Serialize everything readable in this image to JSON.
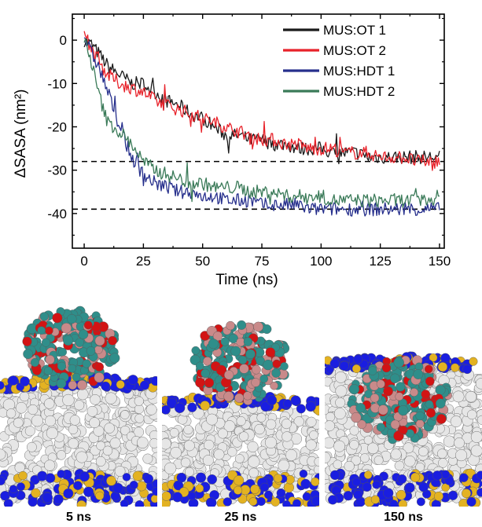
{
  "chart_data": {
    "type": "line",
    "xlabel": "Time (ns)",
    "ylabel": "ΔSASA (nm²)",
    "xlim": [
      -5,
      152
    ],
    "ylim": [
      -48,
      6
    ],
    "xticks": [
      0,
      25,
      50,
      75,
      100,
      125,
      150
    ],
    "yticks": [
      0,
      -10,
      -20,
      -30,
      -40
    ],
    "reference_lines": [
      -28,
      -39
    ],
    "legend_position": "top-right",
    "series": [
      {
        "name": "MUS:OT 1",
        "color": "#1a1a1a",
        "x": [
          0,
          3,
          6,
          10,
          15,
          20,
          25,
          30,
          35,
          40,
          45,
          50,
          55,
          60,
          65,
          70,
          75,
          80,
          85,
          90,
          95,
          100,
          105,
          110,
          115,
          120,
          125,
          130,
          135,
          140,
          145,
          150
        ],
        "y": [
          0,
          -1,
          -3,
          -6,
          -8,
          -10,
          -10,
          -12,
          -14,
          -15,
          -17,
          -18,
          -20,
          -22,
          -22,
          -23,
          -23,
          -24,
          -24,
          -25,
          -25,
          -25,
          -26,
          -26,
          -26,
          -27,
          -27,
          -27,
          -27,
          -27,
          -27,
          -27
        ]
      },
      {
        "name": "MUS:OT 2",
        "color": "#e8222a",
        "x": [
          0,
          3,
          6,
          10,
          15,
          20,
          25,
          30,
          35,
          40,
          45,
          50,
          55,
          60,
          65,
          70,
          75,
          80,
          85,
          90,
          95,
          100,
          105,
          110,
          115,
          120,
          125,
          130,
          135,
          140,
          145,
          150
        ],
        "y": [
          1,
          -2,
          -5,
          -8,
          -10,
          -11,
          -12,
          -14,
          -15,
          -16,
          -17,
          -18,
          -19,
          -20,
          -21,
          -22,
          -23,
          -23,
          -24,
          -24,
          -25,
          -25,
          -25,
          -26,
          -26,
          -26,
          -27,
          -27,
          -27,
          -28,
          -28,
          -28
        ]
      },
      {
        "name": "MUS:HDT 1",
        "color": "#262f8c",
        "x": [
          0,
          3,
          6,
          10,
          15,
          20,
          25,
          30,
          35,
          40,
          45,
          50,
          55,
          60,
          65,
          70,
          75,
          80,
          85,
          90,
          95,
          100,
          105,
          110,
          115,
          120,
          125,
          130,
          135,
          140,
          145,
          150
        ],
        "y": [
          1,
          -3,
          -6,
          -12,
          -20,
          -27,
          -31,
          -33,
          -34,
          -35,
          -35,
          -36,
          -36,
          -37,
          -37,
          -37,
          -38,
          -38,
          -38,
          -38,
          -39,
          -39,
          -39,
          -39,
          -39,
          -39,
          -39,
          -39,
          -39,
          -39,
          -39,
          -39
        ]
      },
      {
        "name": "MUS:HDT 2",
        "color": "#3a7a58",
        "x": [
          0,
          3,
          6,
          8,
          10,
          15,
          20,
          25,
          30,
          35,
          40,
          45,
          50,
          55,
          60,
          65,
          70,
          75,
          80,
          85,
          90,
          95,
          100,
          105,
          110,
          115,
          120,
          125,
          130,
          135,
          140,
          145,
          150
        ],
        "y": [
          1,
          -5,
          -12,
          -16,
          -19,
          -21,
          -24,
          -28,
          -30,
          -31,
          -32,
          -33,
          -33,
          -34,
          -34,
          -34,
          -35,
          -35,
          -35,
          -36,
          -36,
          -36,
          -36,
          -37,
          -37,
          -37,
          -37,
          -37,
          -37,
          -37,
          -37,
          -37,
          -36
        ]
      }
    ]
  },
  "panels": [
    {
      "caption": "5 ns"
    },
    {
      "caption": "25 ns"
    },
    {
      "caption": "150 ns"
    }
  ],
  "panel_colors": {
    "lipid_tails": "#e6e6e6",
    "headgroup_blue": "#1a1ee0",
    "headgroup_gold": "#e3b222",
    "ligand_teal": "#2f8e8a",
    "ligand_pink": "#c98a8a",
    "ligand_red": "#d21414"
  }
}
